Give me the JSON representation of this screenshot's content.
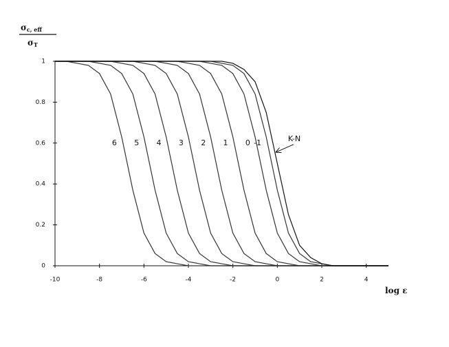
{
  "chart_data": {
    "type": "line",
    "x_label": {
      "symbol": "log ",
      "variable": "ε"
    },
    "y_label": {
      "numerator": {
        "symbol": "σ",
        "subscript": "c, eff"
      },
      "denominator": {
        "symbol": "σ",
        "subscript": "T"
      }
    },
    "x": [
      -10,
      -9.5,
      -9,
      -8.5,
      -8,
      -7.5,
      -7,
      -6.5,
      -6,
      -5.5,
      -5,
      -4.5,
      -4,
      -3.5,
      -3,
      -2.5,
      -2,
      -1.5,
      -1,
      -0.5,
      0,
      0.5,
      1,
      1.5,
      2,
      2.5,
      3,
      3.5,
      4,
      4.5,
      5
    ],
    "xlim": [
      -10,
      5
    ],
    "xticks": [
      -10,
      -8,
      -6,
      -4,
      -2,
      0,
      2,
      4
    ],
    "ylim": [
      0,
      1
    ],
    "yticks": [
      0,
      0.2,
      0.4,
      0.6,
      0.8,
      1
    ],
    "grid": false,
    "series": [
      {
        "name": "6",
        "color": "#333333",
        "values": [
          1,
          1,
          0.99,
          0.98,
          0.94,
          0.84,
          0.63,
          0.37,
          0.16,
          0.06,
          0.02,
          0.01,
          0,
          0,
          0,
          0,
          0,
          0,
          0,
          0,
          0,
          0,
          0,
          0,
          0,
          0,
          0,
          0,
          0,
          0,
          0
        ]
      },
      {
        "name": "5",
        "color": "#333333",
        "values": [
          1,
          1,
          1,
          1,
          0.99,
          0.98,
          0.94,
          0.84,
          0.63,
          0.37,
          0.16,
          0.06,
          0.02,
          0.01,
          0,
          0,
          0,
          0,
          0,
          0,
          0,
          0,
          0,
          0,
          0,
          0,
          0,
          0,
          0,
          0,
          0
        ]
      },
      {
        "name": "4",
        "color": "#333333",
        "values": [
          1,
          1,
          1,
          1,
          1,
          1,
          0.99,
          0.98,
          0.94,
          0.84,
          0.63,
          0.37,
          0.16,
          0.06,
          0.02,
          0.01,
          0,
          0,
          0,
          0,
          0,
          0,
          0,
          0,
          0,
          0,
          0,
          0,
          0,
          0,
          0
        ]
      },
      {
        "name": "3",
        "color": "#333333",
        "values": [
          1,
          1,
          1,
          1,
          1,
          1,
          1,
          1,
          0.99,
          0.98,
          0.94,
          0.84,
          0.63,
          0.37,
          0.16,
          0.06,
          0.02,
          0.01,
          0,
          0,
          0,
          0,
          0,
          0,
          0,
          0,
          0,
          0,
          0,
          0,
          0
        ]
      },
      {
        "name": "2",
        "color": "#333333",
        "values": [
          1,
          1,
          1,
          1,
          1,
          1,
          1,
          1,
          1,
          1,
          0.99,
          0.98,
          0.94,
          0.84,
          0.63,
          0.37,
          0.16,
          0.06,
          0.02,
          0.01,
          0,
          0,
          0,
          0,
          0,
          0,
          0,
          0,
          0,
          0,
          0
        ]
      },
      {
        "name": "1",
        "color": "#333333",
        "values": [
          1,
          1,
          1,
          1,
          1,
          1,
          1,
          1,
          1,
          1,
          1,
          1,
          0.99,
          0.98,
          0.94,
          0.84,
          0.63,
          0.37,
          0.16,
          0.06,
          0.02,
          0.01,
          0,
          0,
          0,
          0,
          0,
          0,
          0,
          0,
          0
        ]
      },
      {
        "name": "0",
        "color": "#333333",
        "values": [
          1,
          1,
          1,
          1,
          1,
          1,
          1,
          1,
          1,
          1,
          1,
          1,
          1,
          1,
          0.99,
          0.98,
          0.94,
          0.84,
          0.63,
          0.37,
          0.16,
          0.06,
          0.02,
          0.01,
          0,
          0,
          0,
          0,
          0,
          0,
          0
        ]
      },
      {
        "name": "-1",
        "color": "#333333",
        "values": [
          1,
          1,
          1,
          1,
          1,
          1,
          1,
          1,
          1,
          1,
          1,
          1,
          1,
          1,
          1,
          0.99,
          0.98,
          0.94,
          0.84,
          0.63,
          0.37,
          0.16,
          0.06,
          0.02,
          0.01,
          0,
          0,
          0,
          0,
          0,
          0
        ]
      },
      {
        "name": "K-N",
        "color": "#111111",
        "values": [
          1,
          1,
          1,
          1,
          1,
          1,
          1,
          1,
          1,
          1,
          1,
          1,
          1,
          1,
          1,
          1,
          0.99,
          0.96,
          0.9,
          0.75,
          0.5,
          0.25,
          0.1,
          0.04,
          0.01,
          0,
          0,
          0,
          0,
          0,
          0
        ]
      }
    ]
  }
}
